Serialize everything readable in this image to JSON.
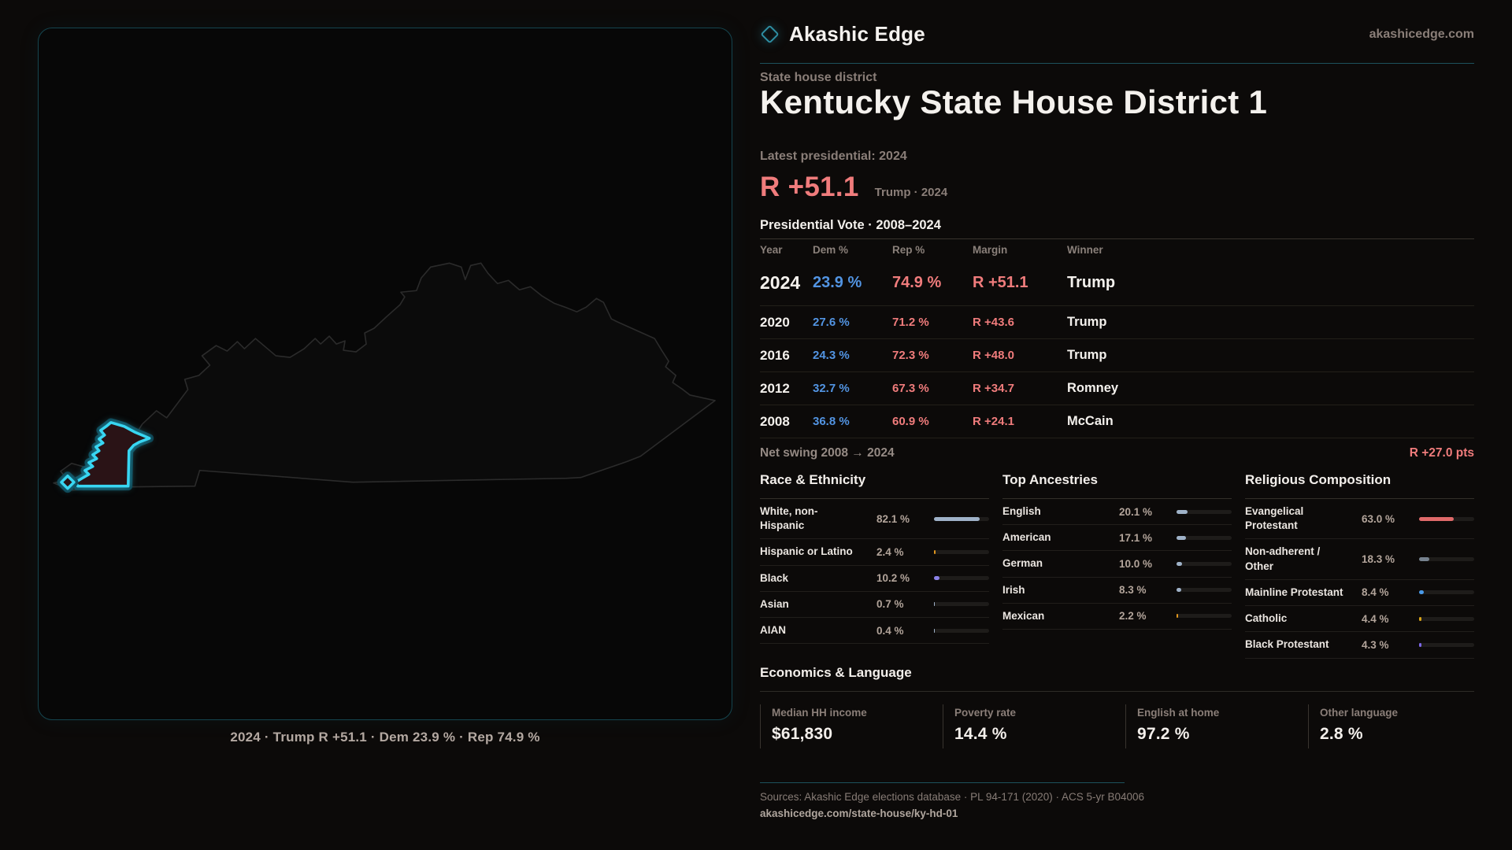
{
  "colors": {
    "accent_teal": "#1d515c",
    "district_cyan": "#38d6f2",
    "republican_red": "#f07c7c",
    "democrat_blue": "#5294e2",
    "muted_text": "#8a7e78"
  },
  "brand": {
    "name": "Akashic Edge",
    "site": "akashicedge.com",
    "logo_icon": "diamond-icon"
  },
  "page": {
    "eyebrow": "State house district",
    "title": "Kentucky State House District 1"
  },
  "latest": {
    "label": "Latest presidential: 2024",
    "margin": "R +51.1",
    "note": "Trump · 2024"
  },
  "map": {
    "caption": "2024 · Trump R +51.1 · Dem 23.9 % · Rep 74.9 %"
  },
  "vote_table": {
    "heading": "Presidential Vote · 2008–2024",
    "columns": [
      "Year",
      "Dem %",
      "Rep %",
      "Margin",
      "Winner"
    ],
    "rows": [
      {
        "year": "2024",
        "dem": "23.9 %",
        "rep": "74.9 %",
        "margin": "R +51.1",
        "winner": "Trump",
        "featured": true
      },
      {
        "year": "2020",
        "dem": "27.6 %",
        "rep": "71.2 %",
        "margin": "R +43.6",
        "winner": "Trump",
        "featured": false
      },
      {
        "year": "2016",
        "dem": "24.3 %",
        "rep": "72.3 %",
        "margin": "R +48.0",
        "winner": "Trump",
        "featured": false
      },
      {
        "year": "2012",
        "dem": "32.7 %",
        "rep": "67.3 %",
        "margin": "R +34.7",
        "winner": "Romney",
        "featured": false
      },
      {
        "year": "2008",
        "dem": "36.8 %",
        "rep": "60.9 %",
        "margin": "R +24.1",
        "winner": "McCain",
        "featured": false
      }
    ]
  },
  "net_swing": {
    "label": "Net swing 2008 → 2024",
    "value": "R +27.0 pts"
  },
  "sections": {
    "race": {
      "title": "Race & Ethnicity",
      "rows": [
        {
          "label": "White, non-Hispanic",
          "value": "82.1 %",
          "pct": 82.1,
          "color": "#9fb2c8"
        },
        {
          "label": "Hispanic or Latino",
          "value": "2.4 %",
          "pct": 2.4,
          "color": "#e0961e"
        },
        {
          "label": "Black",
          "value": "10.2 %",
          "pct": 10.2,
          "color": "#8b82e8"
        },
        {
          "label": "Asian",
          "value": "0.7 %",
          "pct": 0.7,
          "color": "#9fb2c8"
        },
        {
          "label": "AIAN",
          "value": "0.4 %",
          "pct": 0.4,
          "color": "#9fb2c8"
        }
      ]
    },
    "ancestries": {
      "title": "Top Ancestries",
      "rows": [
        {
          "label": "English",
          "value": "20.1 %",
          "pct": 20.1,
          "color": "#9fb2c8"
        },
        {
          "label": "American",
          "value": "17.1 %",
          "pct": 17.1,
          "color": "#9fb2c8"
        },
        {
          "label": "German",
          "value": "10.0 %",
          "pct": 10.0,
          "color": "#9fb2c8"
        },
        {
          "label": "Irish",
          "value": "8.3 %",
          "pct": 8.3,
          "color": "#9fb2c8"
        },
        {
          "label": "Mexican",
          "value": "2.2 %",
          "pct": 2.2,
          "color": "#e0961e"
        }
      ]
    },
    "religion": {
      "title": "Religious Composition",
      "rows": [
        {
          "label": "Evangelical Protestant",
          "value": "63.0 %",
          "pct": 63.0,
          "color": "#e06a6a"
        },
        {
          "label": "Non-adherent / Other",
          "value": "18.3 %",
          "pct": 18.3,
          "color": "#76828e"
        },
        {
          "label": "Mainline Protestant",
          "value": "8.4 %",
          "pct": 8.4,
          "color": "#4a9ae8"
        },
        {
          "label": "Catholic",
          "value": "4.4 %",
          "pct": 4.4,
          "color": "#d9a418"
        },
        {
          "label": "Black Protestant",
          "value": "4.3 %",
          "pct": 4.3,
          "color": "#7d68e8"
        }
      ]
    }
  },
  "economics": {
    "title": "Economics & Language",
    "stats": [
      {
        "label": "Median HH income",
        "value": "$61,830"
      },
      {
        "label": "Poverty rate",
        "value": "14.4 %"
      },
      {
        "label": "English at home",
        "value": "97.2 %"
      },
      {
        "label": "Other language",
        "value": "2.8 %"
      }
    ]
  },
  "footer": {
    "sources": "Sources: Akashic Edge elections database · PL 94-171 (2020) · ACS 5-yr B04006",
    "permalink": "akashicedge.com/state-house/ky-hd-01"
  }
}
